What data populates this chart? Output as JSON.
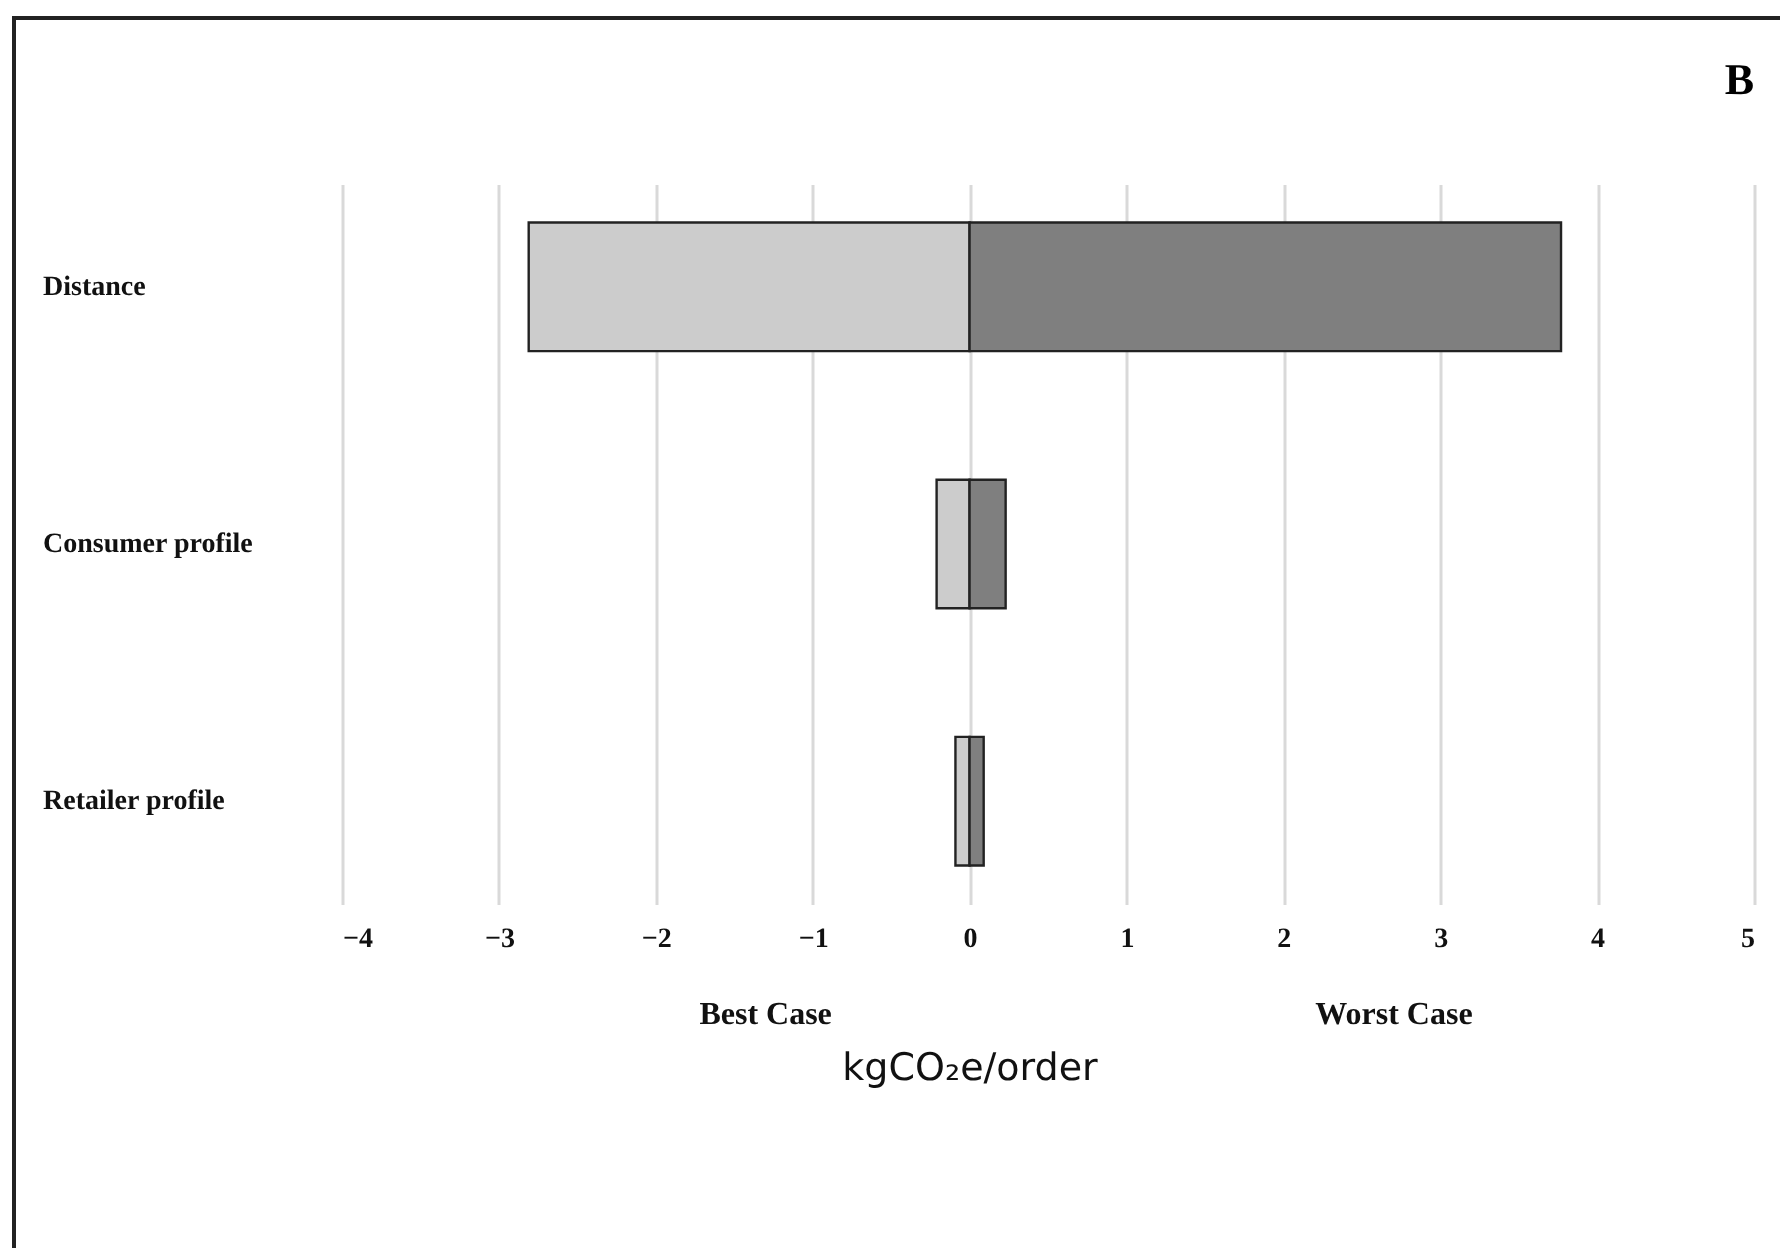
{
  "chart_data": {
    "type": "bar",
    "title": "B",
    "orientation": "horizontal",
    "stacked": true,
    "categories": [
      "Distance",
      "Consumer profile",
      "Retailer profile"
    ],
    "series": [
      {
        "color": "#cccccc",
        "values": [
          -2.81,
          -0.21,
          -0.09
        ]
      },
      {
        "color": "#7f7f7f",
        "values": [
          3.77,
          0.23,
          0.09
        ]
      }
    ],
    "xlim": [
      -4,
      5
    ],
    "xticks": [
      -4,
      -3,
      -2,
      -1,
      0,
      1,
      2,
      3,
      4,
      5
    ],
    "xlabel": "kgCO₂e/order",
    "grid": "x",
    "annotations": [
      "Best Case",
      "Worst Case"
    ]
  }
}
